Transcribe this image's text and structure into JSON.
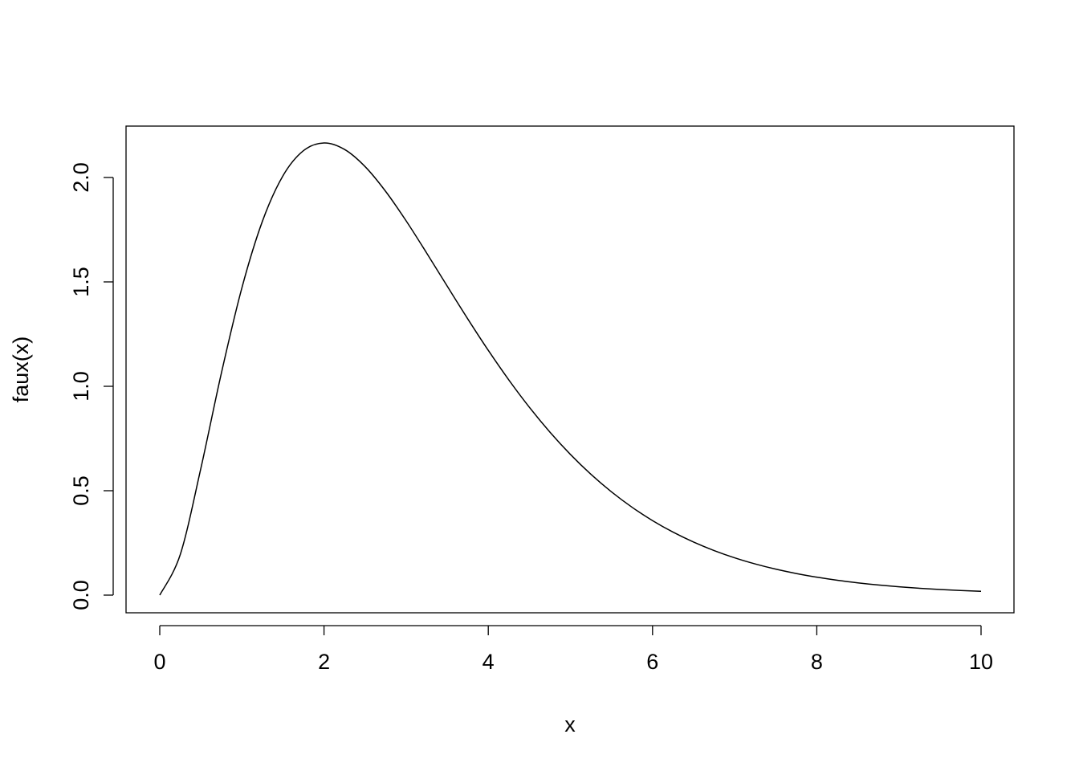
{
  "chart_data": {
    "type": "line",
    "title": "",
    "xlabel": "x",
    "ylabel": "faux(x)",
    "xlim": [
      0,
      10
    ],
    "ylim": [
      0,
      2.2
    ],
    "grid": false,
    "x_ticks": [
      "0",
      "2",
      "4",
      "6",
      "8",
      "10"
    ],
    "y_ticks": [
      "0.0",
      "0.5",
      "1.0",
      "1.5",
      "2.0"
    ],
    "line_color": "#000000",
    "series": [
      {
        "x": [
          0,
          0.25,
          0.5,
          0.75,
          1,
          1.25,
          1.5,
          1.75,
          2,
          2.25,
          2.5,
          2.75,
          3,
          3.25,
          3.5,
          3.75,
          4,
          4.25,
          4.5,
          4.75,
          5,
          5.25,
          5.5,
          5.75,
          6,
          6.25,
          6.5,
          6.75,
          7,
          7.25,
          7.5,
          7.75,
          8,
          8.25,
          8.5,
          8.75,
          9,
          9.25,
          9.5,
          9.75,
          10
        ],
        "y": [
          0,
          0.1947,
          0.6065,
          1.0628,
          1.4715,
          1.7906,
          2.0083,
          2.1286,
          2.1654,
          2.1343,
          2.0521,
          1.9336,
          1.7923,
          1.6381,
          1.4797,
          1.3229,
          1.1722,
          1.0306,
          0.8998,
          0.7808,
          0.6738,
          0.5785,
          0.4945,
          0.4209,
          0.3569,
          0.3016,
          0.2541,
          0.2134,
          0.1787,
          0.1493,
          0.1244,
          0.1035,
          0.0859,
          0.0711,
          0.0588,
          0.0485,
          0.04,
          0.0329,
          0.027,
          0.0222,
          0.0182
        ]
      }
    ]
  }
}
